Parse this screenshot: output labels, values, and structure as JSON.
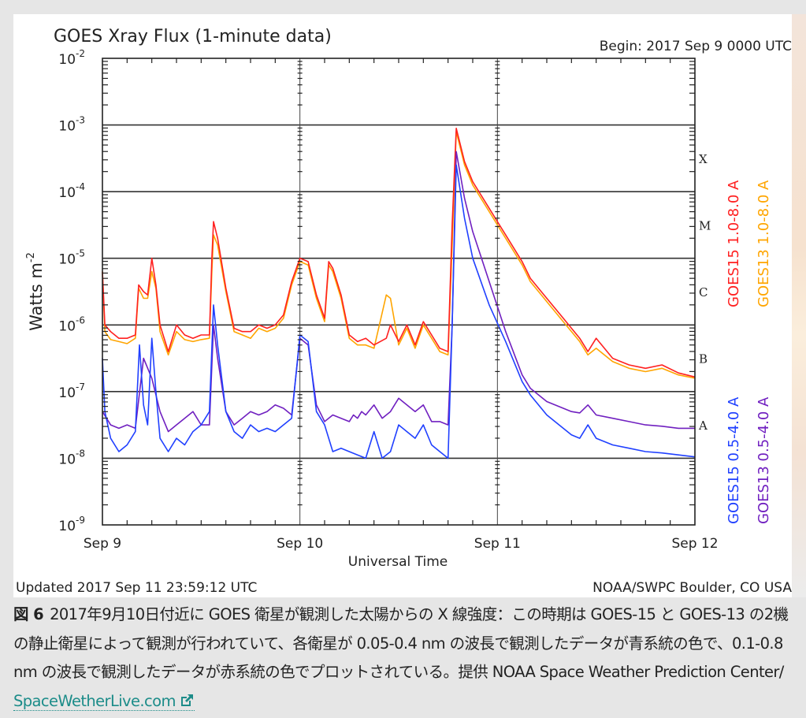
{
  "chart_data": {
    "type": "line",
    "title": "GOES Xray Flux (1-minute data)",
    "begin_label": "Begin:  2017 Sep 9 0000 UTC",
    "xlabel": "Universal Time",
    "ylabel": "Watts m",
    "ylabel_superscript": "-2",
    "x_units": "hours since 2017 Sep 9 0000 UTC",
    "xlim": [
      0,
      72
    ],
    "ylim": [
      1e-09,
      0.01
    ],
    "yscale": "log",
    "grid": "horizontal at each decade",
    "x_ticks": [
      {
        "value": 0,
        "label": "Sep 9"
      },
      {
        "value": 24,
        "label": "Sep 10"
      },
      {
        "value": 48,
        "label": "Sep 11"
      },
      {
        "value": 72,
        "label": "Sep 12"
      }
    ],
    "y_ticks": [
      {
        "exp": -2,
        "base": "10",
        "sup": "-2"
      },
      {
        "exp": -3,
        "base": "10",
        "sup": "-3"
      },
      {
        "exp": -4,
        "base": "10",
        "sup": "-4"
      },
      {
        "exp": -5,
        "base": "10",
        "sup": "-5"
      },
      {
        "exp": -6,
        "base": "10",
        "sup": "-6"
      },
      {
        "exp": -7,
        "base": "10",
        "sup": "-7"
      },
      {
        "exp": -8,
        "base": "10",
        "sup": "-8"
      },
      {
        "exp": -9,
        "base": "10",
        "sup": "-9"
      }
    ],
    "flare_classes": [
      {
        "label": "X",
        "exp": -3.5
      },
      {
        "label": "M",
        "exp": -4.5
      },
      {
        "label": "C",
        "exp": -5.5
      },
      {
        "label": "B",
        "exp": -6.5
      },
      {
        "label": "A",
        "exp": -7.5
      }
    ],
    "legend_placement": "right, vertical",
    "legend": [
      {
        "name": "GOES15 1.0-8.0 A",
        "color": "#ff2020"
      },
      {
        "name": "GOES13 1.0-8.0 A",
        "color": "#ffa500"
      },
      {
        "name": "GOES15 0.5-4.0 A",
        "color": "#2040ff"
      },
      {
        "name": "GOES13 0.5-4.0 A",
        "color": "#7020c0"
      }
    ],
    "series": [
      {
        "name": "GOES13 1.0-8.0 A",
        "color": "#ffa500",
        "value_format": "log10 W/m^2",
        "points": [
          [
            0,
            -5.2
          ],
          [
            0.3,
            -6.1
          ],
          [
            1,
            -6.22
          ],
          [
            2,
            -6.25
          ],
          [
            3,
            -6.28
          ],
          [
            4,
            -6.2
          ],
          [
            4.4,
            -5.45
          ],
          [
            5,
            -5.6
          ],
          [
            5.5,
            -5.6
          ],
          [
            6,
            -5.2
          ],
          [
            6.5,
            -5.45
          ],
          [
            7,
            -6.1
          ],
          [
            8,
            -6.45
          ],
          [
            9,
            -6.1
          ],
          [
            10,
            -6.22
          ],
          [
            11,
            -6.25
          ],
          [
            12,
            -6.22
          ],
          [
            13,
            -6.2
          ],
          [
            13.3,
            -5.2
          ],
          [
            13.5,
            -4.65
          ],
          [
            14,
            -4.8
          ],
          [
            15,
            -5.5
          ],
          [
            16,
            -6.1
          ],
          [
            17,
            -6.15
          ],
          [
            18,
            -6.2
          ],
          [
            19,
            -6.05
          ],
          [
            20,
            -6.1
          ],
          [
            21,
            -6.05
          ],
          [
            22,
            -5.9
          ],
          [
            23,
            -5.4
          ],
          [
            24,
            -5.05
          ],
          [
            25,
            -5.1
          ],
          [
            26,
            -5.6
          ],
          [
            27,
            -5.95
          ],
          [
            27.5,
            -5.1
          ],
          [
            28,
            -5.2
          ],
          [
            29,
            -5.6
          ],
          [
            30,
            -6.2
          ],
          [
            31,
            -6.3
          ],
          [
            32,
            -6.3
          ],
          [
            33,
            -6.35
          ],
          [
            34.5,
            -5.55
          ],
          [
            35,
            -5.6
          ],
          [
            36,
            -6.3
          ],
          [
            37,
            -6.05
          ],
          [
            38,
            -6.35
          ],
          [
            39,
            -6.0
          ],
          [
            40,
            -6.2
          ],
          [
            41,
            -6.4
          ],
          [
            42,
            -6.45
          ],
          [
            42.5,
            -4.8
          ],
          [
            43,
            -3.1
          ],
          [
            44,
            -3.6
          ],
          [
            45,
            -3.9
          ],
          [
            47,
            -4.3
          ],
          [
            49,
            -4.7
          ],
          [
            51,
            -5.1
          ],
          [
            52,
            -5.35
          ],
          [
            54,
            -5.65
          ],
          [
            56,
            -5.95
          ],
          [
            58,
            -6.25
          ],
          [
            59,
            -6.45
          ],
          [
            60,
            -6.35
          ],
          [
            62,
            -6.55
          ],
          [
            64,
            -6.65
          ],
          [
            66,
            -6.7
          ],
          [
            68,
            -6.65
          ],
          [
            70,
            -6.75
          ],
          [
            72,
            -6.8
          ]
        ]
      },
      {
        "name": "GOES15 1.0-8.0 A",
        "color": "#ff2020",
        "value_format": "log10 W/m^2",
        "points": [
          [
            0,
            -5.2
          ],
          [
            0.3,
            -6.0
          ],
          [
            1,
            -6.1
          ],
          [
            2,
            -6.2
          ],
          [
            3,
            -6.2
          ],
          [
            4,
            -6.15
          ],
          [
            4.4,
            -5.4
          ],
          [
            5,
            -5.5
          ],
          [
            5.5,
            -5.55
          ],
          [
            6,
            -5.0
          ],
          [
            6.5,
            -5.4
          ],
          [
            7,
            -6.0
          ],
          [
            8,
            -6.4
          ],
          [
            9,
            -6.0
          ],
          [
            10,
            -6.15
          ],
          [
            11,
            -6.2
          ],
          [
            12,
            -6.15
          ],
          [
            13,
            -6.15
          ],
          [
            13.3,
            -5.0
          ],
          [
            13.5,
            -4.45
          ],
          [
            14,
            -4.7
          ],
          [
            15,
            -5.45
          ],
          [
            16,
            -6.05
          ],
          [
            17,
            -6.1
          ],
          [
            18,
            -6.1
          ],
          [
            19,
            -6.0
          ],
          [
            20,
            -6.05
          ],
          [
            21,
            -6.0
          ],
          [
            22,
            -5.85
          ],
          [
            23,
            -5.35
          ],
          [
            24,
            -5.0
          ],
          [
            25,
            -5.05
          ],
          [
            26,
            -5.55
          ],
          [
            27,
            -5.9
          ],
          [
            27.5,
            -5.05
          ],
          [
            28,
            -5.15
          ],
          [
            29,
            -5.55
          ],
          [
            30,
            -6.15
          ],
          [
            31,
            -6.25
          ],
          [
            32,
            -6.2
          ],
          [
            33,
            -6.3
          ],
          [
            34.5,
            -6.2
          ],
          [
            35,
            -6.0
          ],
          [
            36,
            -6.25
          ],
          [
            37,
            -6.0
          ],
          [
            38,
            -6.3
          ],
          [
            39,
            -5.95
          ],
          [
            40,
            -6.15
          ],
          [
            41,
            -6.35
          ],
          [
            42,
            -6.4
          ],
          [
            42.5,
            -4.5
          ],
          [
            43,
            -3.05
          ],
          [
            44,
            -3.55
          ],
          [
            45,
            -3.85
          ],
          [
            47,
            -4.25
          ],
          [
            49,
            -4.65
          ],
          [
            51,
            -5.05
          ],
          [
            52,
            -5.3
          ],
          [
            54,
            -5.6
          ],
          [
            56,
            -5.9
          ],
          [
            58,
            -6.2
          ],
          [
            59,
            -6.4
          ],
          [
            60,
            -6.2
          ],
          [
            62,
            -6.5
          ],
          [
            64,
            -6.6
          ],
          [
            66,
            -6.65
          ],
          [
            68,
            -6.6
          ],
          [
            70,
            -6.72
          ],
          [
            72,
            -6.78
          ]
        ]
      },
      {
        "name": "GOES13 0.5-4.0 A",
        "color": "#7020c0",
        "value_format": "log10 W/m^2",
        "points": [
          [
            0,
            -7.3
          ],
          [
            1,
            -7.5
          ],
          [
            2,
            -7.55
          ],
          [
            3,
            -7.5
          ],
          [
            4,
            -7.55
          ],
          [
            5,
            -6.5
          ],
          [
            6,
            -6.8
          ],
          [
            7,
            -7.3
          ],
          [
            8,
            -7.6
          ],
          [
            9,
            -7.5
          ],
          [
            10,
            -7.4
          ],
          [
            11,
            -7.3
          ],
          [
            12,
            -7.5
          ],
          [
            13,
            -7.5
          ],
          [
            13.5,
            -6.0
          ],
          [
            14,
            -6.5
          ],
          [
            15,
            -7.3
          ],
          [
            16,
            -7.5
          ],
          [
            17,
            -7.4
          ],
          [
            18,
            -7.3
          ],
          [
            19,
            -7.35
          ],
          [
            20,
            -7.3
          ],
          [
            21,
            -7.2
          ],
          [
            22,
            -7.25
          ],
          [
            23,
            -7.35
          ],
          [
            24,
            -6.2
          ],
          [
            25,
            -6.3
          ],
          [
            26,
            -7.2
          ],
          [
            27,
            -7.45
          ],
          [
            28,
            -7.35
          ],
          [
            29,
            -7.4
          ],
          [
            30,
            -7.45
          ],
          [
            30.5,
            -7.35
          ],
          [
            31,
            -7.4
          ],
          [
            31.5,
            -7.3
          ],
          [
            32,
            -7.35
          ],
          [
            33,
            -7.2
          ],
          [
            34,
            -7.4
          ],
          [
            35,
            -7.3
          ],
          [
            36,
            -7.1
          ],
          [
            37,
            -7.2
          ],
          [
            38,
            -7.3
          ],
          [
            39,
            -7.2
          ],
          [
            40,
            -7.45
          ],
          [
            41,
            -7.45
          ],
          [
            42,
            -7.5
          ],
          [
            42.5,
            -6.0
          ],
          [
            43,
            -3.4
          ],
          [
            44,
            -4.1
          ],
          [
            45,
            -4.6
          ],
          [
            47,
            -5.35
          ],
          [
            49,
            -6.1
          ],
          [
            51,
            -6.75
          ],
          [
            52,
            -6.95
          ],
          [
            54,
            -7.15
          ],
          [
            56,
            -7.25
          ],
          [
            57,
            -7.3
          ],
          [
            58,
            -7.32
          ],
          [
            59,
            -7.2
          ],
          [
            60,
            -7.35
          ],
          [
            62,
            -7.4
          ],
          [
            64,
            -7.45
          ],
          [
            66,
            -7.5
          ],
          [
            68,
            -7.52
          ],
          [
            70,
            -7.55
          ],
          [
            72,
            -7.55
          ]
        ]
      },
      {
        "name": "GOES15 0.5-4.0 A",
        "color": "#2040ff",
        "value_format": "log10 W/m^2",
        "points": [
          [
            0,
            -6.5
          ],
          [
            0.3,
            -7.3
          ],
          [
            1,
            -7.7
          ],
          [
            2,
            -7.9
          ],
          [
            3,
            -7.8
          ],
          [
            4,
            -7.6
          ],
          [
            4.5,
            -6.3
          ],
          [
            5,
            -7.2
          ],
          [
            5.5,
            -7.5
          ],
          [
            6,
            -6.2
          ],
          [
            6.5,
            -7.0
          ],
          [
            7,
            -7.7
          ],
          [
            8,
            -7.9
          ],
          [
            9,
            -7.7
          ],
          [
            10,
            -7.8
          ],
          [
            11,
            -7.6
          ],
          [
            12,
            -7.5
          ],
          [
            13,
            -7.3
          ],
          [
            13.5,
            -5.7
          ],
          [
            14,
            -6.3
          ],
          [
            15,
            -7.3
          ],
          [
            16,
            -7.6
          ],
          [
            17,
            -7.7
          ],
          [
            18,
            -7.5
          ],
          [
            19,
            -7.6
          ],
          [
            20,
            -7.55
          ],
          [
            21,
            -7.6
          ],
          [
            22,
            -7.5
          ],
          [
            23,
            -7.4
          ],
          [
            24,
            -6.15
          ],
          [
            25,
            -6.25
          ],
          [
            26,
            -7.3
          ],
          [
            27,
            -7.5
          ],
          [
            28,
            -7.9
          ],
          [
            29,
            -7.85
          ],
          [
            30,
            -7.9
          ],
          [
            31,
            -7.95
          ],
          [
            32,
            -8.0
          ],
          [
            33,
            -7.6
          ],
          [
            34,
            -8.0
          ],
          [
            35,
            -7.9
          ],
          [
            36,
            -7.5
          ],
          [
            37,
            -7.6
          ],
          [
            38,
            -7.7
          ],
          [
            39,
            -7.5
          ],
          [
            40,
            -7.8
          ],
          [
            41,
            -7.9
          ],
          [
            42,
            -8.0
          ],
          [
            42.5,
            -6.0
          ],
          [
            43,
            -3.6
          ],
          [
            44,
            -4.4
          ],
          [
            45,
            -5.0
          ],
          [
            47,
            -5.7
          ],
          [
            49,
            -6.25
          ],
          [
            51,
            -6.85
          ],
          [
            52,
            -7.05
          ],
          [
            54,
            -7.35
          ],
          [
            56,
            -7.55
          ],
          [
            57,
            -7.65
          ],
          [
            58,
            -7.7
          ],
          [
            59,
            -7.5
          ],
          [
            60,
            -7.7
          ],
          [
            62,
            -7.8
          ],
          [
            64,
            -7.85
          ],
          [
            66,
            -7.9
          ],
          [
            68,
            -7.92
          ],
          [
            70,
            -7.95
          ],
          [
            72,
            -7.98
          ]
        ]
      }
    ]
  },
  "footer": {
    "updated": "Updated 2017 Sep 11 23:59:12 UTC",
    "credit": "NOAA/SWPC Boulder, CO USA"
  },
  "caption": {
    "figure_label": "図 6",
    "text": "2017年9月10日付近に GOES 衛星が観測した太陽からの X 線強度：この時期は GOES-15 と GOES-13 の2機の静止衛星によって観測が行われていて、各衛星が 0.05-0.4 nm の波長で観測したデータが青系統の色で、0.1-0.8 nm の波長で観測したデータが赤系統の色でプロットされている。提供 NOAA Space Weather Prediction Center/ ",
    "link_text": "SpaceWetherLive.com",
    "link_icon": "external-link-icon",
    "link_color": "#1c8c89"
  }
}
